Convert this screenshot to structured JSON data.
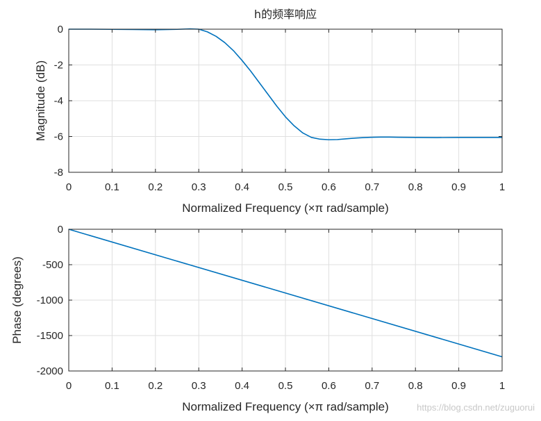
{
  "chart_data": [
    {
      "type": "line",
      "title": "h的频率响应",
      "xlabel": "Normalized Frequency  (×π rad/sample)",
      "ylabel": "Magnitude (dB)",
      "xlim": [
        0,
        1
      ],
      "ylim": [
        -8,
        0
      ],
      "xticks": [
        "0",
        "0.1",
        "0.2",
        "0.3",
        "0.4",
        "0.5",
        "0.6",
        "0.7",
        "0.8",
        "0.9",
        "1"
      ],
      "yticks": [
        "0",
        "-2",
        "-4",
        "-6",
        "-8"
      ],
      "grid": true,
      "color": "#0072bd",
      "series": [
        {
          "x": [
            0,
            0.05,
            0.1,
            0.15,
            0.2,
            0.25,
            0.28,
            0.3,
            0.32,
            0.34,
            0.36,
            0.38,
            0.4,
            0.42,
            0.44,
            0.46,
            0.48,
            0.5,
            0.52,
            0.54,
            0.56,
            0.58,
            0.6,
            0.62,
            0.64,
            0.66,
            0.68,
            0.7,
            0.72,
            0.74,
            0.76,
            0.8,
            0.85,
            0.9,
            0.95,
            1.0
          ],
          "y": [
            0,
            0,
            -0.01,
            -0.02,
            -0.03,
            -0.01,
            0.02,
            0,
            -0.15,
            -0.4,
            -0.75,
            -1.2,
            -1.75,
            -2.35,
            -3.0,
            -3.65,
            -4.3,
            -4.9,
            -5.4,
            -5.8,
            -6.05,
            -6.15,
            -6.18,
            -6.17,
            -6.13,
            -6.09,
            -6.06,
            -6.04,
            -6.03,
            -6.03,
            -6.04,
            -6.05,
            -6.06,
            -6.05,
            -6.05,
            -6.05
          ]
        }
      ]
    },
    {
      "type": "line",
      "title": "",
      "xlabel": "Normalized Frequency  (×π rad/sample)",
      "ylabel": "Phase (degrees)",
      "xlim": [
        0,
        1
      ],
      "ylim": [
        -2000,
        0
      ],
      "xticks": [
        "0",
        "0.1",
        "0.2",
        "0.3",
        "0.4",
        "0.5",
        "0.6",
        "0.7",
        "0.8",
        "0.9",
        "1"
      ],
      "yticks": [
        "0",
        "-500",
        "-1000",
        "-1500",
        "-2000"
      ],
      "grid": true,
      "color": "#0072bd",
      "series": [
        {
          "x": [
            0,
            1
          ],
          "y": [
            0,
            -1800
          ]
        }
      ]
    }
  ],
  "watermark": "https://blog.csdn.net/zuguorui"
}
